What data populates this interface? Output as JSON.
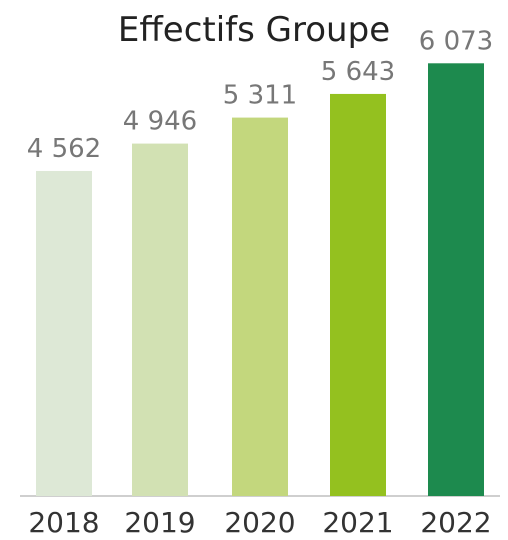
{
  "chart_data": {
    "type": "bar",
    "title": "Effectifs Groupe",
    "categories": [
      "2018",
      "2019",
      "2020",
      "2021",
      "2022"
    ],
    "values": [
      4562,
      4946,
      5311,
      5643,
      6073
    ],
    "data_labels": [
      "4 562",
      "4 946",
      "5 311",
      "5 643",
      "6 073"
    ],
    "bar_colors": [
      "#dde8d6",
      "#d2e1b3",
      "#c3d77d",
      "#94c11f",
      "#1d8a4e"
    ],
    "axis_color": "#cfcfcf",
    "ylim": [
      0,
      6400
    ],
    "grid": false,
    "legend": "none",
    "xlabel": "",
    "ylabel": ""
  }
}
